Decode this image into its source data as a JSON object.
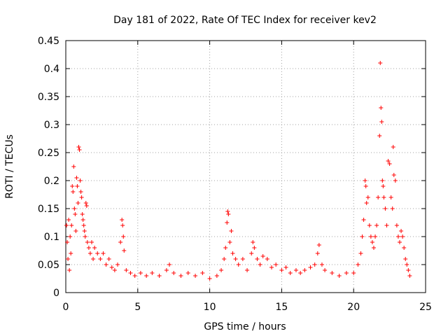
{
  "chart_data": {
    "type": "scatter",
    "title": "Day 181 of 2022, Rate Of TEC Index for receiver kev2",
    "xlabel": "GPS time / hours",
    "ylabel": "ROTI / TECUs",
    "xlim": [
      0,
      25
    ],
    "ylim": [
      0,
      0.45
    ],
    "xticks": [
      0,
      5,
      10,
      15,
      20,
      25
    ],
    "yticks": [
      0,
      0.05,
      0.1,
      0.15,
      0.2,
      0.25,
      0.3,
      0.35,
      0.4,
      0.45
    ],
    "x_tick_labels": [
      "0",
      "5",
      "10",
      "15",
      "20",
      "25"
    ],
    "y_tick_labels": [
      "0",
      "0.05",
      "0.1",
      "0.15",
      "0.2",
      "0.25",
      "0.3",
      "0.35",
      "0.4",
      "0.45"
    ],
    "grid": true,
    "marker": "plus",
    "color": "#ff0000",
    "series": [
      {
        "points": [
          [
            0.05,
            0.12
          ],
          [
            0.1,
            0.09
          ],
          [
            0.15,
            0.06
          ],
          [
            0.2,
            0.13
          ],
          [
            0.25,
            0.04
          ],
          [
            0.3,
            0.1
          ],
          [
            0.35,
            0.07
          ],
          [
            0.4,
            0.12
          ],
          [
            0.45,
            0.19
          ],
          [
            0.5,
            0.18
          ],
          [
            0.55,
            0.225
          ],
          [
            0.6,
            0.15
          ],
          [
            0.65,
            0.14
          ],
          [
            0.7,
            0.11
          ],
          [
            0.75,
            0.205
          ],
          [
            0.8,
            0.19
          ],
          [
            0.85,
            0.16
          ],
          [
            0.9,
            0.26
          ],
          [
            0.95,
            0.255
          ],
          [
            1.0,
            0.2
          ],
          [
            1.05,
            0.18
          ],
          [
            1.1,
            0.17
          ],
          [
            1.15,
            0.14
          ],
          [
            1.2,
            0.13
          ],
          [
            1.25,
            0.12
          ],
          [
            1.3,
            0.11
          ],
          [
            1.35,
            0.1
          ],
          [
            1.4,
            0.16
          ],
          [
            1.45,
            0.155
          ],
          [
            1.5,
            0.09
          ],
          [
            1.6,
            0.08
          ],
          [
            1.7,
            0.07
          ],
          [
            1.8,
            0.09
          ],
          [
            1.9,
            0.06
          ],
          [
            2.0,
            0.08
          ],
          [
            2.2,
            0.07
          ],
          [
            2.4,
            0.06
          ],
          [
            2.6,
            0.07
          ],
          [
            2.8,
            0.05
          ],
          [
            3.0,
            0.06
          ],
          [
            3.2,
            0.045
          ],
          [
            3.4,
            0.04
          ],
          [
            3.6,
            0.05
          ],
          [
            3.8,
            0.09
          ],
          [
            3.9,
            0.13
          ],
          [
            3.95,
            0.12
          ],
          [
            4.0,
            0.1
          ],
          [
            4.05,
            0.075
          ],
          [
            4.2,
            0.04
          ],
          [
            4.5,
            0.035
          ],
          [
            4.8,
            0.03
          ],
          [
            5.2,
            0.035
          ],
          [
            5.6,
            0.03
          ],
          [
            6.0,
            0.035
          ],
          [
            6.5,
            0.03
          ],
          [
            7.0,
            0.04
          ],
          [
            7.2,
            0.05
          ],
          [
            7.5,
            0.035
          ],
          [
            8.0,
            0.03
          ],
          [
            8.5,
            0.035
          ],
          [
            9.0,
            0.03
          ],
          [
            9.5,
            0.035
          ],
          [
            10.0,
            0.025
          ],
          [
            10.5,
            0.03
          ],
          [
            10.8,
            0.04
          ],
          [
            11.0,
            0.06
          ],
          [
            11.1,
            0.08
          ],
          [
            11.2,
            0.125
          ],
          [
            11.25,
            0.145
          ],
          [
            11.3,
            0.14
          ],
          [
            11.4,
            0.09
          ],
          [
            11.5,
            0.11
          ],
          [
            11.6,
            0.07
          ],
          [
            11.8,
            0.06
          ],
          [
            12.0,
            0.05
          ],
          [
            12.3,
            0.06
          ],
          [
            12.6,
            0.04
          ],
          [
            12.9,
            0.07
          ],
          [
            13.0,
            0.09
          ],
          [
            13.1,
            0.08
          ],
          [
            13.3,
            0.06
          ],
          [
            13.5,
            0.05
          ],
          [
            13.7,
            0.065
          ],
          [
            14.0,
            0.06
          ],
          [
            14.3,
            0.045
          ],
          [
            14.6,
            0.05
          ],
          [
            15.0,
            0.04
          ],
          [
            15.3,
            0.045
          ],
          [
            15.6,
            0.035
          ],
          [
            16.0,
            0.04
          ],
          [
            16.3,
            0.035
          ],
          [
            16.6,
            0.04
          ],
          [
            17.0,
            0.045
          ],
          [
            17.3,
            0.05
          ],
          [
            17.5,
            0.07
          ],
          [
            17.6,
            0.085
          ],
          [
            17.8,
            0.05
          ],
          [
            18.0,
            0.04
          ],
          [
            18.5,
            0.035
          ],
          [
            19.0,
            0.03
          ],
          [
            19.5,
            0.035
          ],
          [
            20.0,
            0.035
          ],
          [
            20.3,
            0.05
          ],
          [
            20.5,
            0.07
          ],
          [
            20.6,
            0.1
          ],
          [
            20.7,
            0.13
          ],
          [
            20.8,
            0.2
          ],
          [
            20.85,
            0.19
          ],
          [
            20.9,
            0.16
          ],
          [
            21.0,
            0.17
          ],
          [
            21.1,
            0.12
          ],
          [
            21.2,
            0.1
          ],
          [
            21.3,
            0.09
          ],
          [
            21.4,
            0.08
          ],
          [
            21.5,
            0.1
          ],
          [
            21.6,
            0.12
          ],
          [
            21.7,
            0.17
          ],
          [
            21.8,
            0.28
          ],
          [
            21.85,
            0.41
          ],
          [
            21.9,
            0.33
          ],
          [
            21.95,
            0.305
          ],
          [
            22.0,
            0.2
          ],
          [
            22.05,
            0.19
          ],
          [
            22.1,
            0.17
          ],
          [
            22.2,
            0.15
          ],
          [
            22.3,
            0.12
          ],
          [
            22.4,
            0.235
          ],
          [
            22.5,
            0.23
          ],
          [
            22.6,
            0.17
          ],
          [
            22.7,
            0.15
          ],
          [
            22.75,
            0.26
          ],
          [
            22.8,
            0.21
          ],
          [
            22.9,
            0.2
          ],
          [
            23.0,
            0.12
          ],
          [
            23.1,
            0.1
          ],
          [
            23.2,
            0.09
          ],
          [
            23.3,
            0.11
          ],
          [
            23.4,
            0.1
          ],
          [
            23.5,
            0.08
          ],
          [
            23.6,
            0.06
          ],
          [
            23.7,
            0.05
          ],
          [
            23.8,
            0.04
          ],
          [
            23.9,
            0.03
          ]
        ]
      }
    ]
  }
}
